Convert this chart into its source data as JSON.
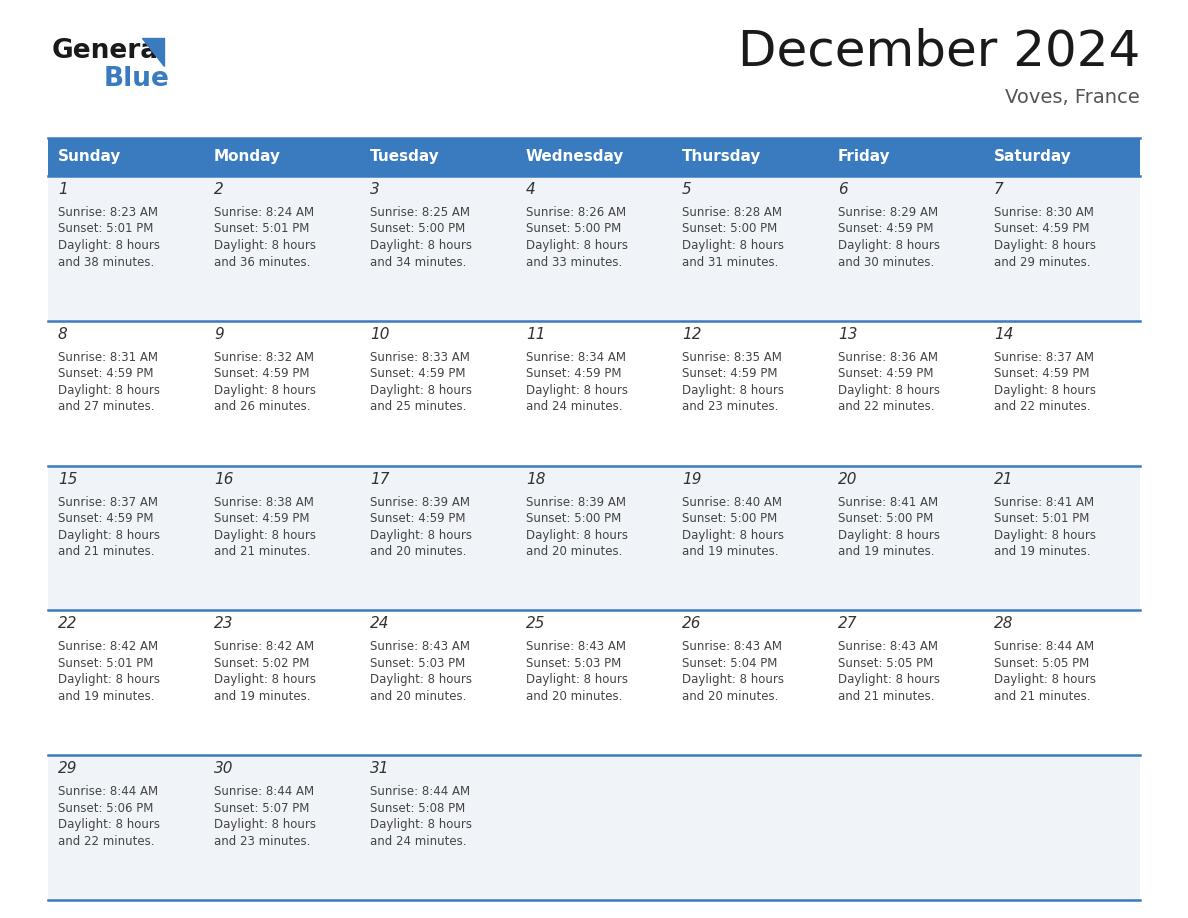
{
  "title": "December 2024",
  "subtitle": "Voves, France",
  "header_bg": "#3a7bbf",
  "header_text": "#ffffff",
  "day_names": [
    "Sunday",
    "Monday",
    "Tuesday",
    "Wednesday",
    "Thursday",
    "Friday",
    "Saturday"
  ],
  "row0_bg": "#f0f4f8",
  "row1_bg": "#ffffff",
  "border_color": "#3a7bbf",
  "text_color": "#444444",
  "fig_width": 11.88,
  "fig_height": 9.18,
  "dpi": 100,
  "calendar_data": [
    [
      {
        "day": 1,
        "sunrise": "8:23 AM",
        "sunset": "5:01 PM",
        "daylight_h": "8 hours",
        "daylight_m": "38 minutes"
      },
      {
        "day": 2,
        "sunrise": "8:24 AM",
        "sunset": "5:01 PM",
        "daylight_h": "8 hours",
        "daylight_m": "36 minutes"
      },
      {
        "day": 3,
        "sunrise": "8:25 AM",
        "sunset": "5:00 PM",
        "daylight_h": "8 hours",
        "daylight_m": "34 minutes"
      },
      {
        "day": 4,
        "sunrise": "8:26 AM",
        "sunset": "5:00 PM",
        "daylight_h": "8 hours",
        "daylight_m": "33 minutes"
      },
      {
        "day": 5,
        "sunrise": "8:28 AM",
        "sunset": "5:00 PM",
        "daylight_h": "8 hours",
        "daylight_m": "31 minutes"
      },
      {
        "day": 6,
        "sunrise": "8:29 AM",
        "sunset": "4:59 PM",
        "daylight_h": "8 hours",
        "daylight_m": "30 minutes"
      },
      {
        "day": 7,
        "sunrise": "8:30 AM",
        "sunset": "4:59 PM",
        "daylight_h": "8 hours",
        "daylight_m": "29 minutes"
      }
    ],
    [
      {
        "day": 8,
        "sunrise": "8:31 AM",
        "sunset": "4:59 PM",
        "daylight_h": "8 hours",
        "daylight_m": "27 minutes"
      },
      {
        "day": 9,
        "sunrise": "8:32 AM",
        "sunset": "4:59 PM",
        "daylight_h": "8 hours",
        "daylight_m": "26 minutes"
      },
      {
        "day": 10,
        "sunrise": "8:33 AM",
        "sunset": "4:59 PM",
        "daylight_h": "8 hours",
        "daylight_m": "25 minutes"
      },
      {
        "day": 11,
        "sunrise": "8:34 AM",
        "sunset": "4:59 PM",
        "daylight_h": "8 hours",
        "daylight_m": "24 minutes"
      },
      {
        "day": 12,
        "sunrise": "8:35 AM",
        "sunset": "4:59 PM",
        "daylight_h": "8 hours",
        "daylight_m": "23 minutes"
      },
      {
        "day": 13,
        "sunrise": "8:36 AM",
        "sunset": "4:59 PM",
        "daylight_h": "8 hours",
        "daylight_m": "22 minutes"
      },
      {
        "day": 14,
        "sunrise": "8:37 AM",
        "sunset": "4:59 PM",
        "daylight_h": "8 hours",
        "daylight_m": "22 minutes"
      }
    ],
    [
      {
        "day": 15,
        "sunrise": "8:37 AM",
        "sunset": "4:59 PM",
        "daylight_h": "8 hours",
        "daylight_m": "21 minutes"
      },
      {
        "day": 16,
        "sunrise": "8:38 AM",
        "sunset": "4:59 PM",
        "daylight_h": "8 hours",
        "daylight_m": "21 minutes"
      },
      {
        "day": 17,
        "sunrise": "8:39 AM",
        "sunset": "4:59 PM",
        "daylight_h": "8 hours",
        "daylight_m": "20 minutes"
      },
      {
        "day": 18,
        "sunrise": "8:39 AM",
        "sunset": "5:00 PM",
        "daylight_h": "8 hours",
        "daylight_m": "20 minutes"
      },
      {
        "day": 19,
        "sunrise": "8:40 AM",
        "sunset": "5:00 PM",
        "daylight_h": "8 hours",
        "daylight_m": "19 minutes"
      },
      {
        "day": 20,
        "sunrise": "8:41 AM",
        "sunset": "5:00 PM",
        "daylight_h": "8 hours",
        "daylight_m": "19 minutes"
      },
      {
        "day": 21,
        "sunrise": "8:41 AM",
        "sunset": "5:01 PM",
        "daylight_h": "8 hours",
        "daylight_m": "19 minutes"
      }
    ],
    [
      {
        "day": 22,
        "sunrise": "8:42 AM",
        "sunset": "5:01 PM",
        "daylight_h": "8 hours",
        "daylight_m": "19 minutes"
      },
      {
        "day": 23,
        "sunrise": "8:42 AM",
        "sunset": "5:02 PM",
        "daylight_h": "8 hours",
        "daylight_m": "19 minutes"
      },
      {
        "day": 24,
        "sunrise": "8:43 AM",
        "sunset": "5:03 PM",
        "daylight_h": "8 hours",
        "daylight_m": "20 minutes"
      },
      {
        "day": 25,
        "sunrise": "8:43 AM",
        "sunset": "5:03 PM",
        "daylight_h": "8 hours",
        "daylight_m": "20 minutes"
      },
      {
        "day": 26,
        "sunrise": "8:43 AM",
        "sunset": "5:04 PM",
        "daylight_h": "8 hours",
        "daylight_m": "20 minutes"
      },
      {
        "day": 27,
        "sunrise": "8:43 AM",
        "sunset": "5:05 PM",
        "daylight_h": "8 hours",
        "daylight_m": "21 minutes"
      },
      {
        "day": 28,
        "sunrise": "8:44 AM",
        "sunset": "5:05 PM",
        "daylight_h": "8 hours",
        "daylight_m": "21 minutes"
      }
    ],
    [
      {
        "day": 29,
        "sunrise": "8:44 AM",
        "sunset": "5:06 PM",
        "daylight_h": "8 hours",
        "daylight_m": "22 minutes"
      },
      {
        "day": 30,
        "sunrise": "8:44 AM",
        "sunset": "5:07 PM",
        "daylight_h": "8 hours",
        "daylight_m": "23 minutes"
      },
      {
        "day": 31,
        "sunrise": "8:44 AM",
        "sunset": "5:08 PM",
        "daylight_h": "8 hours",
        "daylight_m": "24 minutes"
      },
      null,
      null,
      null,
      null
    ]
  ]
}
